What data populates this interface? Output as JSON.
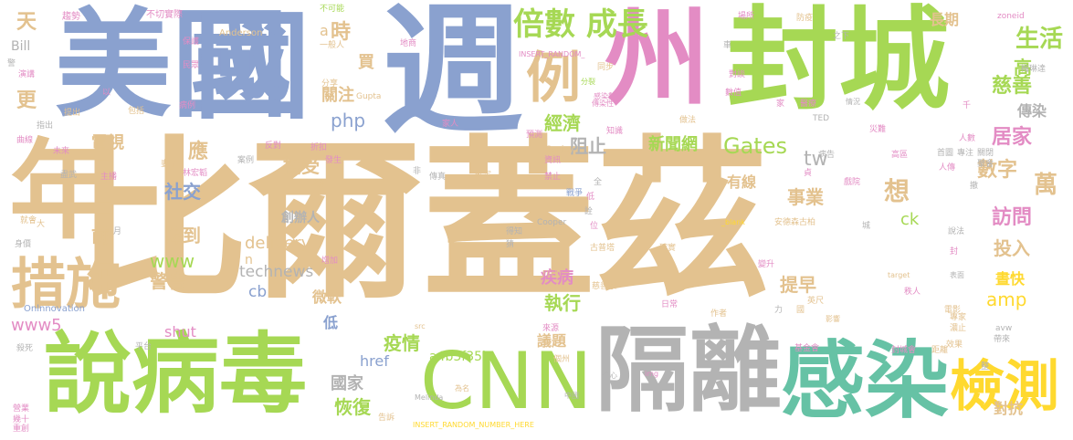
{
  "words": [
    {
      "text": "比爾蓋茲",
      "color": "#e3c28f"
    },
    {
      "text": "美國",
      "color": "#8aa1cf"
    },
    {
      "text": "週",
      "color": "#8aa1cf"
    },
    {
      "text": "國",
      "color": "#8aa1cf"
    },
    {
      "text": "州",
      "color": "#e38cc4"
    },
    {
      "text": "封城",
      "color": "#a6d854"
    },
    {
      "text": "年",
      "color": "#e3c28f"
    },
    {
      "text": "說病毒",
      "color": "#a6d854"
    },
    {
      "text": "CNN",
      "color": "#a6d854"
    },
    {
      "text": "隔離",
      "color": "#b3b3b3"
    },
    {
      "text": "感染",
      "color": "#66c2a5"
    },
    {
      "text": "措施",
      "color": "#e3c28f"
    },
    {
      "text": "檢測",
      "color": "#ffd92f"
    },
    {
      "text": "倍數 成長",
      "color": "#a6d854"
    },
    {
      "text": "例",
      "color": "#e3c28f"
    },
    {
      "text": "經濟",
      "color": "#a6d854"
    },
    {
      "text": "阻止",
      "color": "#b3b3b3"
    },
    {
      "text": "新聞網",
      "color": "#a6d854"
    },
    {
      "text": "Gates",
      "color": "#a6d854"
    },
    {
      "text": "tw",
      "color": "#b3b3b3"
    },
    {
      "text": "有線",
      "color": "#e3c28f"
    },
    {
      "text": "事業",
      "color": "#e3c28f"
    },
    {
      "text": "時",
      "color": "#e3c28f"
    },
    {
      "text": "關注",
      "color": "#e3c28f"
    },
    {
      "text": "php",
      "color": "#8aa1cf"
    },
    {
      "text": "應",
      "color": "#e3c28f"
    },
    {
      "text": "社交",
      "color": "#8aa1cf"
    },
    {
      "text": "接受",
      "color": "#e3c28f"
    },
    {
      "text": "電視",
      "color": "#e3c28f"
    },
    {
      "text": "更",
      "color": "#e3c28f"
    },
    {
      "text": "天",
      "color": "#e3c28f"
    },
    {
      "text": "Bill",
      "color": "#b3b3b3"
    },
    {
      "text": "創辦人",
      "color": "#b3b3b3"
    },
    {
      "text": "delivery",
      "color": "#e3c28f"
    },
    {
      "text": "technews",
      "color": "#b3b3b3"
    },
    {
      "text": "降到",
      "color": "#e3c28f"
    },
    {
      "text": "前",
      "color": "#e3c28f"
    },
    {
      "text": "www",
      "color": "#a6d854"
    },
    {
      "text": "警告",
      "color": "#e3c28f"
    },
    {
      "text": "cb",
      "color": "#8aa1cf"
    },
    {
      "text": "微軟",
      "color": "#e3c28f"
    },
    {
      "text": "低",
      "color": "#8aa1cf"
    },
    {
      "text": "shut",
      "color": "#e38cc4"
    },
    {
      "text": "www5",
      "color": "#e38cc4"
    },
    {
      "text": "疫情",
      "color": "#a6d854"
    },
    {
      "text": "恢復",
      "color": "#a6d854"
    },
    {
      "text": "國家",
      "color": "#b3b3b3"
    },
    {
      "text": "href",
      "color": "#8aa1cf"
    },
    {
      "text": "a4b3f35b",
      "color": "#a6d854"
    },
    {
      "text": "議題",
      "color": "#e3c28f"
    },
    {
      "text": "執行",
      "color": "#a6d854"
    },
    {
      "text": "疾病",
      "color": "#e38cc4"
    },
    {
      "text": "提早",
      "color": "#e3c28f"
    },
    {
      "text": "投入",
      "color": "#e3c28f"
    },
    {
      "text": "晝快",
      "color": "#ffd92f"
    },
    {
      "text": "amp",
      "color": "#ffd92f"
    },
    {
      "text": "對抗",
      "color": "#e3c28f"
    },
    {
      "text": "生活",
      "color": "#a6d854"
    },
    {
      "text": "高",
      "color": "#a6d854"
    },
    {
      "text": "慈善",
      "color": "#a6d854"
    },
    {
      "text": "傳染",
      "color": "#b3b3b3"
    },
    {
      "text": "居家",
      "color": "#e38cc4"
    },
    {
      "text": "數字",
      "color": "#e3c28f"
    },
    {
      "text": "訪問",
      "color": "#e38cc4"
    },
    {
      "text": "萬",
      "color": "#e3c28f"
    },
    {
      "text": "想",
      "color": "#e3c28f"
    },
    {
      "text": "ck",
      "color": "#a6d854"
    },
    {
      "text": "長期",
      "color": "#e3c28f"
    },
    {
      "text": "買",
      "color": "#e3c28f"
    },
    {
      "text": "a",
      "color": "#e3c28f"
    },
    {
      "text": "n",
      "color": "#e3c28f"
    },
    {
      "text": "趨勢",
      "color": "#e38cc4"
    },
    {
      "text": "不切實際",
      "color": "#e38cc4"
    },
    {
      "text": "Anderson",
      "color": "#e3c28f"
    },
    {
      "text": "不可能",
      "color": "#a6d854"
    },
    {
      "text": "一般人",
      "color": "#e3c28f"
    },
    {
      "text": "地商",
      "color": "#e38cc4"
    },
    {
      "text": "INSERT_RANDOM_",
      "color": "#e38cc4"
    },
    {
      "text": "同步",
      "color": "#e3c28f"
    },
    {
      "text": "分享",
      "color": "#e3c28f"
    },
    {
      "text": "Gupta",
      "color": "#e3c28f"
    },
    {
      "text": "分裂",
      "color": "#a6d854"
    },
    {
      "text": "感染數",
      "color": "#e38cc4"
    },
    {
      "text": "傳染性",
      "color": "#e38cc4"
    },
    {
      "text": "知識",
      "color": "#e38cc4"
    },
    {
      "text": "場所",
      "color": "#e38cc4"
    },
    {
      "text": "防疫",
      "color": "#e3c28f"
    },
    {
      "text": "zoneid",
      "color": "#e38cc4"
    },
    {
      "text": "數值",
      "color": "#e38cc4"
    },
    {
      "text": "對談",
      "color": "#e38cc4"
    },
    {
      "text": "醫療",
      "color": "#e38cc4"
    },
    {
      "text": "做法",
      "color": "#e3c28f"
    },
    {
      "text": "情況",
      "color": "#b3b3b3"
    },
    {
      "text": "TED",
      "color": "#b3b3b3"
    },
    {
      "text": "災難",
      "color": "#e38cc4"
    },
    {
      "text": "梅琳達",
      "color": "#b3b3b3"
    },
    {
      "text": "人數",
      "color": "#e38cc4"
    },
    {
      "text": "首圖",
      "color": "#b3b3b3"
    },
    {
      "text": "專注",
      "color": "#b3b3b3"
    },
    {
      "text": "關閉",
      "color": "#b3b3b3"
    },
    {
      "text": "聚會",
      "color": "#b3b3b3"
    },
    {
      "text": "戲院",
      "color": "#e38cc4"
    },
    {
      "text": "病告",
      "color": "#b3b3b3"
    },
    {
      "text": "安德森古柏",
      "color": "#e3c28f"
    },
    {
      "text": "Cooper",
      "color": "#b3b3b3"
    },
    {
      "text": "_blank",
      "color": "#ffd92f"
    },
    {
      "text": "古普塔",
      "color": "#e3c28f"
    },
    {
      "text": "確實",
      "color": "#e3c28f"
    },
    {
      "text": "Flickr",
      "color": "#e3c28f"
    },
    {
      "text": "慈善家",
      "color": "#e3c28f"
    },
    {
      "text": "target",
      "color": "#e3c28f"
    },
    {
      "text": "表面",
      "color": "#b3b3b3"
    },
    {
      "text": "日常",
      "color": "#e38cc4"
    },
    {
      "text": "英尺",
      "color": "#e3c28f"
    },
    {
      "text": "作者",
      "color": "#e3c28f"
    },
    {
      "text": "影響",
      "color": "#e3c28f"
    },
    {
      "text": "基金會",
      "color": "#e38cc4"
    },
    {
      "text": "封城會",
      "color": "#e38cc4"
    },
    {
      "text": "距離",
      "color": "#e3c28f"
    },
    {
      "text": "效果",
      "color": "#e3c28f"
    },
    {
      "text": "Onlnnovation",
      "color": "#8aa1cf"
    },
    {
      "text": "INSERT_RANDOM_NUMBER_HERE",
      "color": "#ffd92f"
    },
    {
      "text": "Melinda",
      "color": "#b3b3b3"
    },
    {
      "text": "中國",
      "color": "#b3b3b3"
    },
    {
      "text": "告訴",
      "color": "#e3c28f"
    },
    {
      "text": "為名",
      "color": "#e3c28f"
    },
    {
      "text": "個州",
      "color": "#e3c28f"
    },
    {
      "text": "來源",
      "color": "#e38cc4"
    },
    {
      "text": "src",
      "color": "#e3c28f"
    },
    {
      "text": "img",
      "color": "#e38cc4"
    },
    {
      "text": "全心",
      "color": "#b3b3b3"
    },
    {
      "text": "營業",
      "color": "#e38cc4"
    },
    {
      "text": "幾十",
      "color": "#e38cc4"
    },
    {
      "text": "重創",
      "color": "#e38cc4"
    },
    {
      "text": "殺死",
      "color": "#b3b3b3"
    },
    {
      "text": "平台",
      "color": "#b3b3b3"
    },
    {
      "text": "主播",
      "color": "#e38cc4"
    },
    {
      "text": "盡武",
      "color": "#b3b3b3"
    },
    {
      "text": "妻子",
      "color": "#e3c28f"
    },
    {
      "text": "林宏韜",
      "color": "#e38cc4"
    },
    {
      "text": "之類",
      "color": "#e3c28f"
    },
    {
      "text": "發生",
      "color": "#e38cc4"
    },
    {
      "text": "折扣",
      "color": "#e38cc4"
    },
    {
      "text": "反對",
      "color": "#e38cc4"
    },
    {
      "text": "案例",
      "color": "#b3b3b3"
    },
    {
      "text": "全",
      "color": "#b3b3b3"
    },
    {
      "text": "禁止",
      "color": "#e38cc4"
    },
    {
      "text": "傳真",
      "color": "#b3b3b3"
    },
    {
      "text": "戰爭",
      "color": "#8aa1cf"
    },
    {
      "text": "Sanjay",
      "color": "#e3c28f"
    },
    {
      "text": "家人",
      "color": "#e38cc4"
    },
    {
      "text": "預測",
      "color": "#e38cc4"
    },
    {
      "text": "資訊",
      "color": "#e38cc4"
    },
    {
      "text": "確定",
      "color": "#e3c28f"
    },
    {
      "text": "保護",
      "color": "#e38cc4"
    },
    {
      "text": "民眾",
      "color": "#e38cc4"
    },
    {
      "text": "指出",
      "color": "#b3b3b3"
    },
    {
      "text": "提出",
      "color": "#e3c28f"
    },
    {
      "text": "包括",
      "color": "#e3c28f"
    },
    {
      "text": "病例",
      "color": "#e38cc4"
    },
    {
      "text": "演講",
      "color": "#e38cc4"
    },
    {
      "text": "曲線",
      "color": "#e38cc4"
    },
    {
      "text": "未來",
      "color": "#e38cc4"
    },
    {
      "text": "身價",
      "color": "#b3b3b3"
    },
    {
      "text": "增加",
      "color": "#e38cc4"
    },
    {
      "text": "變升",
      "color": "#e38cc4"
    },
    {
      "text": "秩人",
      "color": "#e38cc4"
    },
    {
      "text": "電影",
      "color": "#e3c28f"
    },
    {
      "text": "專家",
      "color": "#e3c28f"
    },
    {
      "text": "濃止",
      "color": "#e3c28f"
    },
    {
      "text": "avw",
      "color": "#b3b3b3"
    },
    {
      "text": "帶來",
      "color": "#b3b3b3"
    },
    {
      "text": "力",
      "color": "#b3b3b3"
    },
    {
      "text": "國",
      "color": "#e3c28f"
    },
    {
      "text": "位",
      "color": "#e38cc4"
    },
    {
      "text": "得知",
      "color": "#b3b3b3"
    },
    {
      "text": "猜",
      "color": "#b3b3b3"
    },
    {
      "text": "月",
      "color": "#b3b3b3"
    },
    {
      "text": "以",
      "color": "#e38cc4"
    },
    {
      "text": "車",
      "color": "#b3b3b3"
    },
    {
      "text": "之下",
      "color": "#b3b3b3"
    },
    {
      "text": "家",
      "color": "#e38cc4"
    },
    {
      "text": "非",
      "color": "#b3b3b3"
    },
    {
      "text": "詮",
      "color": "#b3b3b3"
    },
    {
      "text": "低",
      "color": "#e38cc4"
    },
    {
      "text": "貞",
      "color": "#e38cc4"
    },
    {
      "text": "警",
      "color": "#b3b3b3"
    },
    {
      "text": "城",
      "color": "#b3b3b3"
    },
    {
      "text": "封",
      "color": "#e38cc4"
    },
    {
      "text": "千",
      "color": "#e38cc4"
    },
    {
      "text": "說法",
      "color": "#b3b3b3"
    },
    {
      "text": "整",
      "color": "#b3b3b3"
    },
    {
      "text": "撤",
      "color": "#b3b3b3"
    },
    {
      "text": "大",
      "color": "#e3c28f"
    },
    {
      "text": "就會",
      "color": "#e3c28f"
    },
    {
      "text": "高區",
      "color": "#e38cc4"
    },
    {
      "text": "人傳",
      "color": "#e38cc4"
    }
  ]
}
